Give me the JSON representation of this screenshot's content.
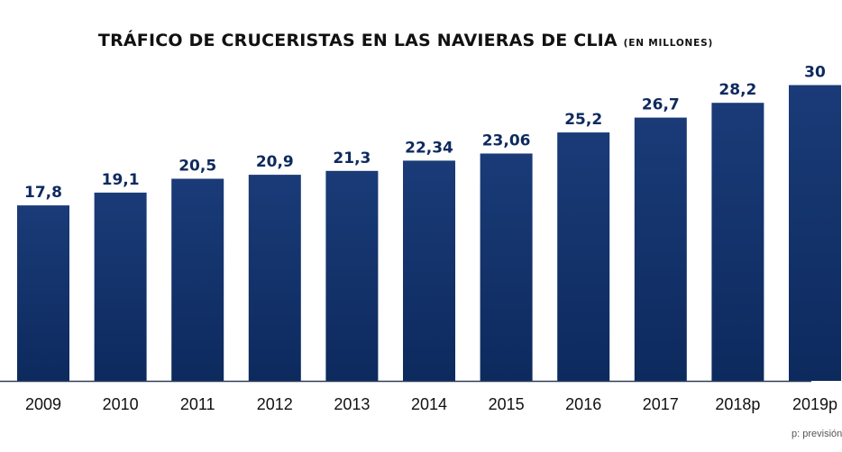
{
  "chart_data": {
    "type": "bar",
    "title": "TRÁFICO DE CRUCERISTAS EN LAS NAVIERAS DE CLIA",
    "subtitle": "(EN MILLONES)",
    "xlabel": "",
    "ylabel": "",
    "ylim": [
      0,
      30
    ],
    "grid": false,
    "categories": [
      "2009",
      "2010",
      "2011",
      "2012",
      "2013",
      "2014",
      "2015",
      "2016",
      "2017",
      "2018p",
      "2019p"
    ],
    "values": [
      17.8,
      19.1,
      20.5,
      20.9,
      21.3,
      22.34,
      23.06,
      25.2,
      26.7,
      28.2,
      30
    ],
    "data_labels": [
      "17,8",
      "19,1",
      "20,5",
      "20,9",
      "21,3",
      "22,34",
      "23,06",
      "25,2",
      "26,7",
      "28,2",
      "30"
    ],
    "footnote": "p: previsión",
    "colors": {
      "bar": "#0d2a5e",
      "bar_top": "#1a3b78",
      "label": "#0d2a5e",
      "axis": "#2c3e5c",
      "tick": "#111111"
    }
  }
}
